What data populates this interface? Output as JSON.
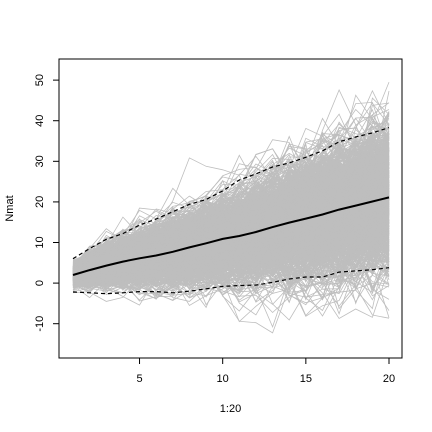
{
  "chart_data": {
    "type": "line",
    "xlabel": "1:20",
    "ylabel": "Nmat",
    "xlim": [
      1,
      20
    ],
    "ylim": [
      -15,
      52
    ],
    "xticks": [
      5,
      10,
      15,
      20
    ],
    "yticks": [
      -10,
      0,
      10,
      20,
      30,
      40,
      50
    ],
    "x": [
      1,
      2,
      3,
      4,
      5,
      6,
      7,
      8,
      9,
      10,
      11,
      12,
      13,
      14,
      15,
      16,
      17,
      18,
      19,
      20
    ],
    "grid": false,
    "legend": "none",
    "colors": {
      "simulations": "#BEBEBE",
      "mean": "#000000",
      "bounds": "#000000"
    },
    "series": [
      {
        "role": "mean",
        "style": "solid",
        "values": [
          2.0,
          3.2,
          4.3,
          5.3,
          6.1,
          6.8,
          7.7,
          8.8,
          9.8,
          10.9,
          11.6,
          12.6,
          13.8,
          14.9,
          15.9,
          16.9,
          18.1,
          19.1,
          20.1,
          21.1
        ]
      },
      {
        "role": "upper",
        "style": "dashed",
        "values": [
          6.0,
          8.5,
          10.8,
          12.2,
          14.3,
          15.8,
          17.6,
          19.4,
          20.6,
          22.7,
          25.4,
          26.9,
          28.6,
          29.6,
          31.0,
          32.6,
          34.8,
          36.0,
          37.0,
          38.3
        ]
      },
      {
        "role": "lower",
        "style": "dashed",
        "values": [
          -2.2,
          -2.4,
          -2.6,
          -2.4,
          -2.1,
          -2.1,
          -2.4,
          -2.0,
          -1.4,
          -0.8,
          -0.6,
          -0.5,
          0.2,
          1.0,
          1.5,
          1.5,
          2.7,
          3.0,
          3.3,
          3.8
        ]
      },
      {
        "role": "simulations",
        "count": 1000,
        "mean_curve": "mean",
        "spread_sd_start": 2.0,
        "spread_sd_end": 8.9,
        "min_observed": -13.5,
        "max_observed": 49.5
      }
    ]
  }
}
